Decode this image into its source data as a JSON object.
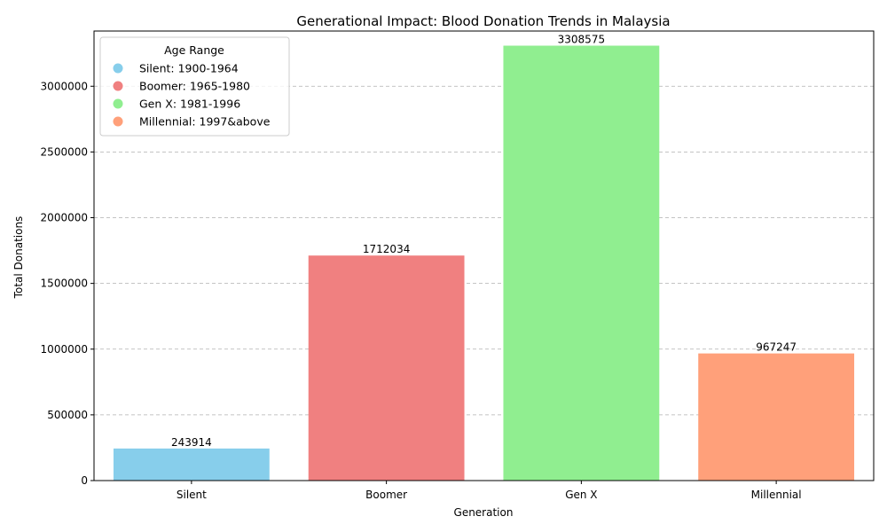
{
  "chart_data": {
    "type": "bar",
    "title": "Generational Impact: Blood Donation Trends in Malaysia",
    "xlabel": "Generation",
    "ylabel": "Total Donations",
    "categories": [
      "Silent",
      "Boomer",
      "Gen X",
      "Millennial"
    ],
    "values": [
      243914,
      1712034,
      3308575,
      967247
    ],
    "colors": [
      "#87ceeb",
      "#f08080",
      "#90ee90",
      "#ffa07a"
    ],
    "ylim": [
      0,
      3420000
    ],
    "yticks": [
      0,
      500000,
      1000000,
      1500000,
      2000000,
      2500000,
      3000000
    ],
    "grid": "y-dashed",
    "legend": {
      "title": "Age Range",
      "placement": "top-left",
      "entries": [
        "Silent: 1900-1964",
        "Boomer: 1965-1980",
        "Gen X: 1981-1996",
        "Millennial: 1997&above"
      ]
    }
  }
}
